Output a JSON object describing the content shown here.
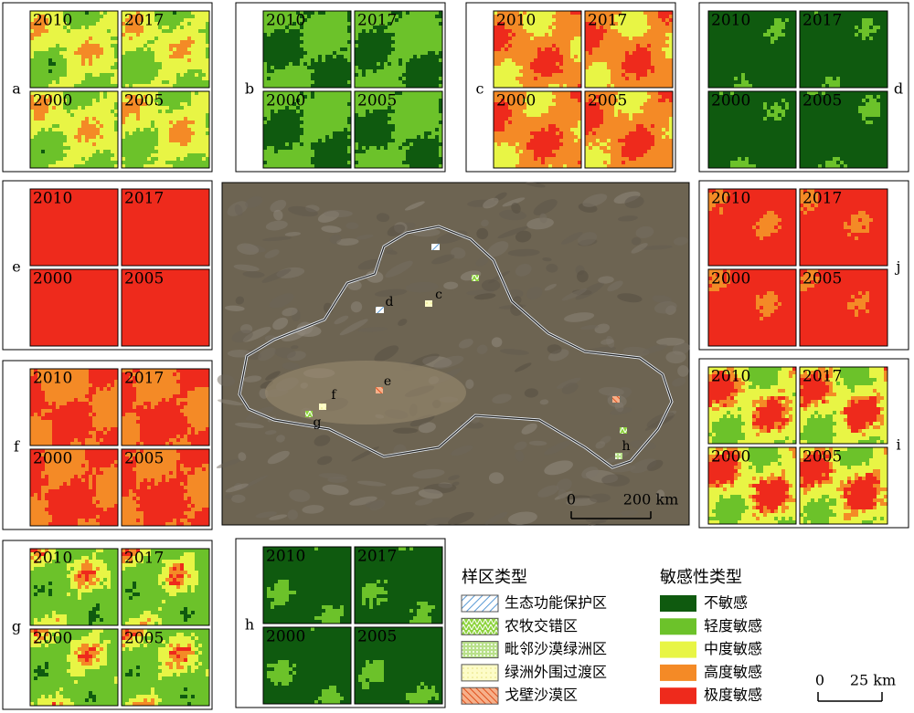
{
  "panels": [
    {
      "letter": "a",
      "years": [
        "2010",
        "2017",
        "2000",
        "2005"
      ]
    },
    {
      "letter": "b",
      "years": [
        "2010",
        "2017",
        "2000",
        "2005"
      ]
    },
    {
      "letter": "c",
      "years": [
        "2010",
        "2017",
        "2000",
        "2005"
      ]
    },
    {
      "letter": "d",
      "years": [
        "2010",
        "2017",
        "2000",
        "2005"
      ]
    },
    {
      "letter": "e",
      "years": [
        "2010",
        "2017",
        "2000",
        "2005"
      ]
    },
    {
      "letter": "j",
      "years": [
        "2010",
        "2017",
        "2000",
        "2005"
      ]
    },
    {
      "letter": "f",
      "years": [
        "2010",
        "2017",
        "2000",
        "2005"
      ]
    },
    {
      "letter": "i",
      "years": [
        "2010",
        "2017",
        "2000",
        "2005"
      ]
    },
    {
      "letter": "g",
      "years": [
        "2010",
        "2017",
        "2000",
        "2005"
      ]
    },
    {
      "letter": "h",
      "years": [
        "2010",
        "2017",
        "2000",
        "2005"
      ]
    }
  ],
  "main_map": {
    "site_labels": [
      "c",
      "d",
      "e",
      "f",
      "g",
      "h"
    ],
    "scale": [
      "0",
      "200 km"
    ]
  },
  "legend": {
    "sample_title": "样区类型",
    "sample_items": [
      "生态功能保护区",
      "农牧交错区",
      "毗邻沙漠绿洲区",
      "绿洲外围过渡区",
      "戈壁沙漠区"
    ],
    "sensitivity_title": "敏感性类型",
    "sensitivity_items": [
      {
        "label": "不敏感",
        "color": "#0f5a0f"
      },
      {
        "label": "轻度敏感",
        "color": "#6cc22a"
      },
      {
        "label": "中度敏感",
        "color": "#e8f545"
      },
      {
        "label": "高度敏感",
        "color": "#f48a26"
      },
      {
        "label": "极度敏感",
        "color": "#ee2a1c"
      }
    ]
  },
  "scale_bar": [
    "0",
    "25 km"
  ]
}
